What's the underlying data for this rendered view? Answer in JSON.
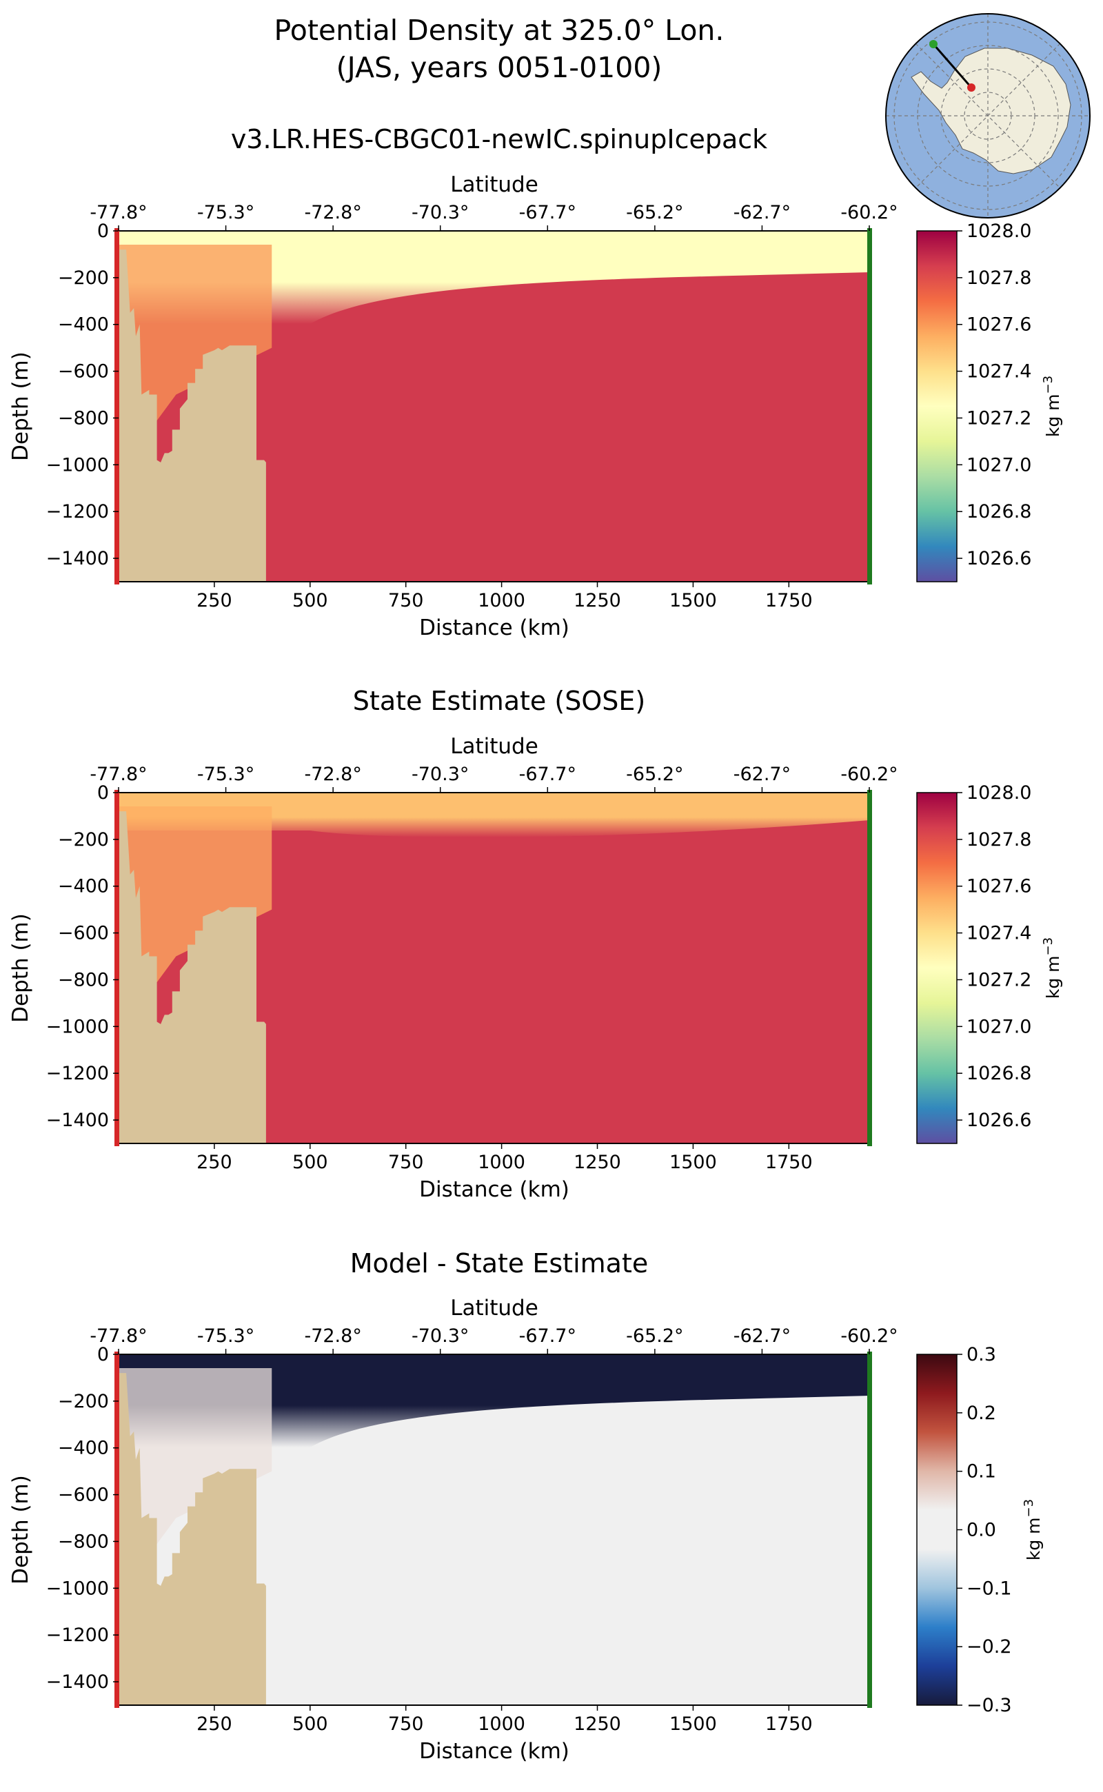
{
  "figure": {
    "title_line1": "Potential Density at 325.0° Lon.",
    "title_line2": "(JAS, years 0051-0100)"
  },
  "inset_map": {
    "description_colors": {
      "ocean": "#8fb1de",
      "land": "#f0eddc",
      "grid": "#7a7a7a"
    },
    "section_start_color": "#d62728",
    "section_end_color": "#2ca02c",
    "section_line_color": "#000000"
  },
  "chart_data": [
    {
      "type": "heatmap",
      "title": "v3.LR.HES-CBGC01-newIC.spinupIcepack",
      "xlabel": "Distance (km)",
      "ylabel": "Depth (m)",
      "top_xlabel": "Latitude",
      "top_xticklabels": [
        "-77.8°",
        "-75.3°",
        "-72.8°",
        "-70.3°",
        "-67.7°",
        "-65.2°",
        "-62.7°",
        "-60.2°"
      ],
      "xticks": [
        250,
        500,
        750,
        1000,
        1250,
        1500,
        1750
      ],
      "xlim": [
        0,
        1960
      ],
      "yticks": [
        0,
        -200,
        -400,
        -600,
        -800,
        -1000,
        -1200,
        -1400
      ],
      "ylim": [
        -1500,
        0
      ],
      "colorbar": {
        "label": "kg m",
        "label_sup": "−3",
        "ticks": [
          "1028.0",
          "1027.8",
          "1027.6",
          "1027.4",
          "1027.2",
          "1027.0",
          "1026.8",
          "1026.6"
        ],
        "range": [
          1026.5,
          1028.0
        ],
        "cmap": "Spectral_r"
      },
      "surface_profile": [
        [
          0,
          1027.25
        ],
        [
          150,
          1027.25
        ],
        [
          500,
          1027.28
        ],
        [
          900,
          1027.25
        ],
        [
          1300,
          1027.15
        ],
        [
          1600,
          1027.1
        ],
        [
          1960,
          1027.0
        ]
      ],
      "interior_value": 1027.86,
      "shelf_value": 1027.6
    },
    {
      "type": "heatmap",
      "title": "State Estimate (SOSE)",
      "xlabel": "Distance (km)",
      "ylabel": "Depth (m)",
      "top_xlabel": "Latitude",
      "top_xticklabels": [
        "-77.8°",
        "-75.3°",
        "-72.8°",
        "-70.3°",
        "-67.7°",
        "-65.2°",
        "-62.7°",
        "-60.2°"
      ],
      "xticks": [
        250,
        500,
        750,
        1000,
        1250,
        1500,
        1750
      ],
      "xlim": [
        0,
        1960
      ],
      "yticks": [
        0,
        -200,
        -400,
        -600,
        -800,
        -1000,
        -1200,
        -1400
      ],
      "ylim": [
        -1500,
        0
      ],
      "colorbar": {
        "label": "kg m",
        "label_sup": "−3",
        "ticks": [
          "1028.0",
          "1027.8",
          "1027.6",
          "1027.4",
          "1027.2",
          "1027.0",
          "1026.8",
          "1026.6"
        ],
        "range": [
          1026.5,
          1028.0
        ],
        "cmap": "Spectral_r"
      },
      "surface_value": 1027.5,
      "interior_value": 1027.86,
      "shelf_value": 1027.55
    },
    {
      "type": "heatmap",
      "title": "Model - State Estimate",
      "xlabel": "Distance (km)",
      "ylabel": "Depth (m)",
      "top_xlabel": "Latitude",
      "top_xticklabels": [
        "-77.8°",
        "-75.3°",
        "-72.8°",
        "-70.3°",
        "-67.7°",
        "-65.2°",
        "-62.7°",
        "-60.2°"
      ],
      "xticks": [
        250,
        500,
        750,
        1000,
        1250,
        1500,
        1750
      ],
      "xlim": [
        0,
        1960
      ],
      "yticks": [
        0,
        -200,
        -400,
        -600,
        -800,
        -1000,
        -1200,
        -1400
      ],
      "ylim": [
        -1500,
        0
      ],
      "colorbar": {
        "label": "kg m",
        "label_sup": "−3",
        "ticks": [
          "0.3",
          "0.2",
          "0.1",
          "0.0",
          "−0.1",
          "−0.2",
          "−0.3"
        ],
        "range": [
          -0.3,
          0.3
        ],
        "cmap": "balance"
      },
      "surface_anomaly": -0.3,
      "interior_anomaly": 0.0,
      "shelf_anomaly": 0.05
    }
  ],
  "bathymetry_km_m": [
    [
      0,
      -1500
    ],
    [
      0,
      -80
    ],
    [
      20,
      -80
    ],
    [
      30,
      -350
    ],
    [
      40,
      -330
    ],
    [
      45,
      -450
    ],
    [
      55,
      -400
    ],
    [
      60,
      -700
    ],
    [
      80,
      -680
    ],
    [
      80,
      -700
    ],
    [
      100,
      -700
    ],
    [
      100,
      -980
    ],
    [
      110,
      -990
    ],
    [
      120,
      -950
    ],
    [
      130,
      -950
    ],
    [
      140,
      -940
    ],
    [
      140,
      -850
    ],
    [
      160,
      -850
    ],
    [
      160,
      -760
    ],
    [
      180,
      -720
    ],
    [
      180,
      -650
    ],
    [
      200,
      -650
    ],
    [
      200,
      -590
    ],
    [
      220,
      -590
    ],
    [
      220,
      -530
    ],
    [
      250,
      -510
    ],
    [
      260,
      -500
    ],
    [
      270,
      -510
    ],
    [
      290,
      -490
    ],
    [
      330,
      -490
    ],
    [
      340,
      -490
    ],
    [
      360,
      -490
    ],
    [
      360,
      -980
    ],
    [
      380,
      -980
    ],
    [
      385,
      -990
    ],
    [
      385,
      -1500
    ]
  ],
  "colors": {
    "land": "#d8c39a",
    "start_marker": "#d62728",
    "end_marker": "#1f7a1f"
  }
}
